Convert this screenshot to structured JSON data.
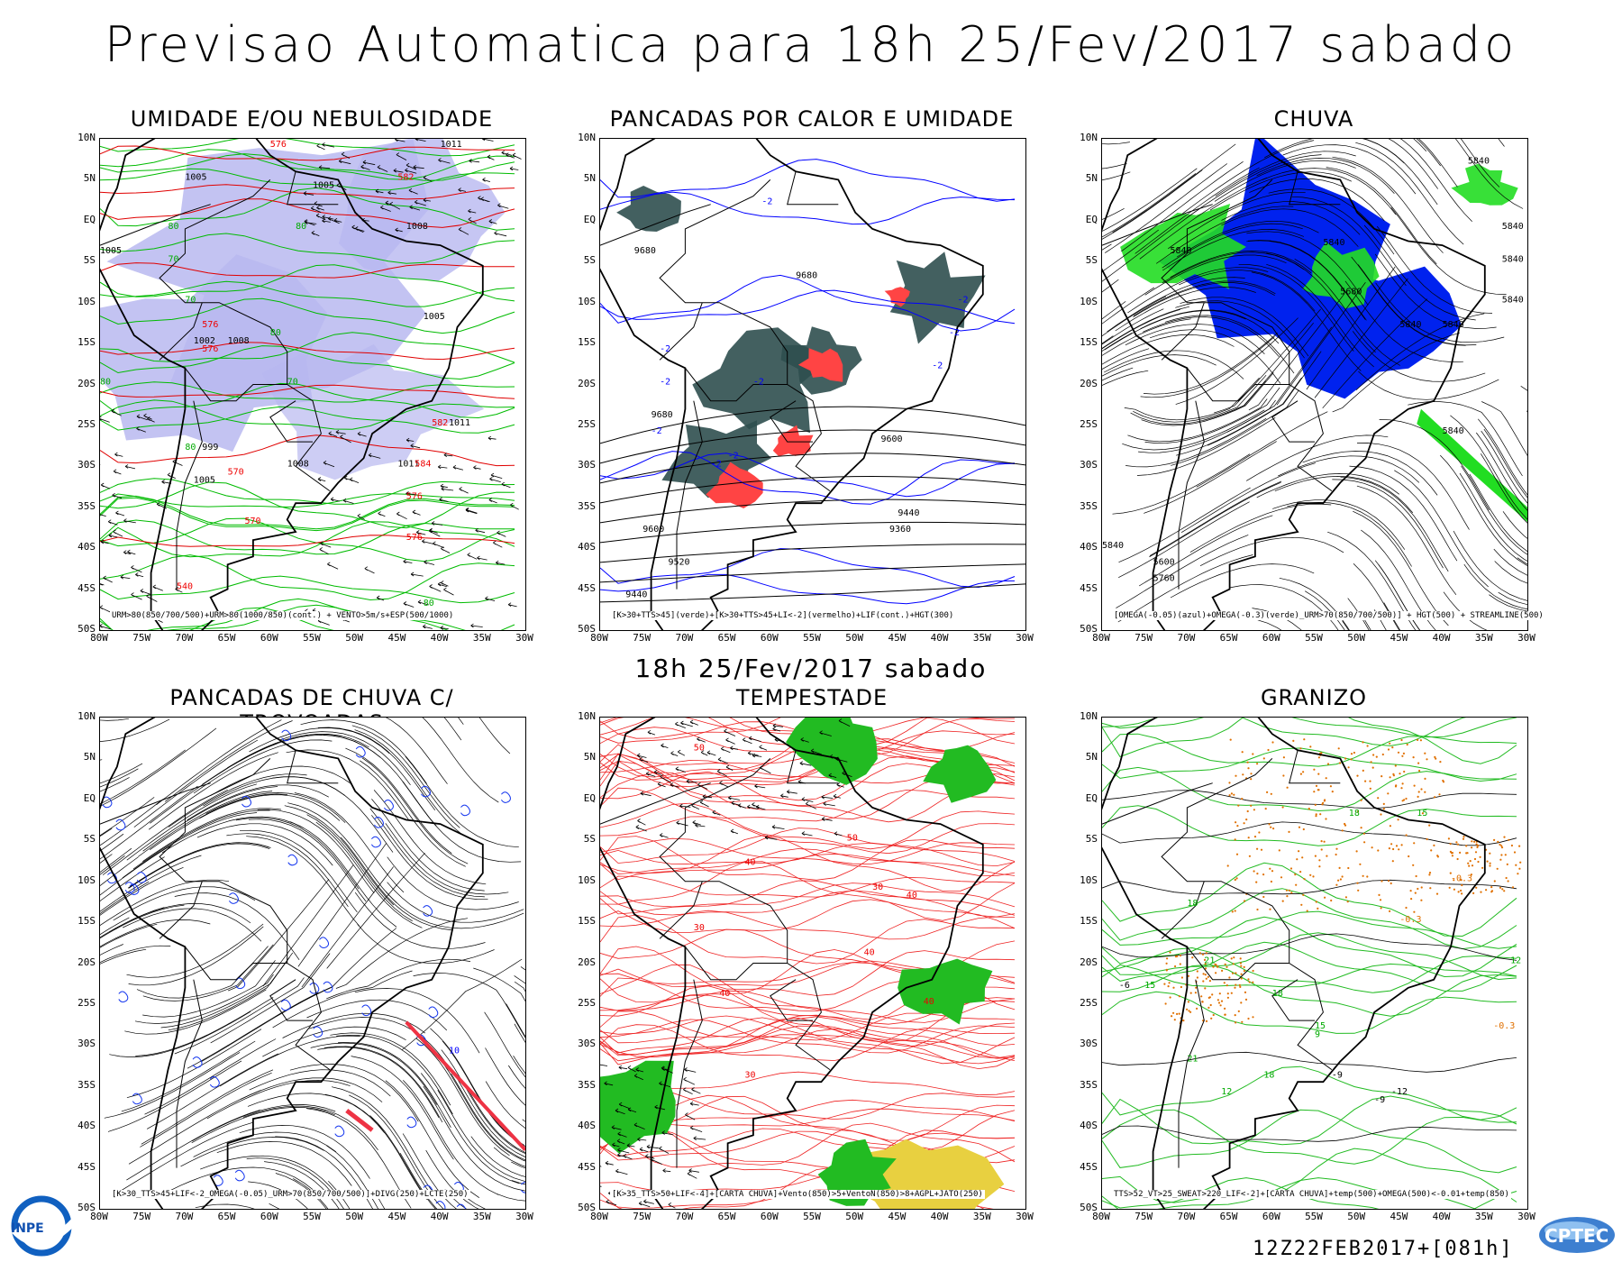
{
  "header": {
    "title": "Previsao Automatica  para 18h 25/Fev/2017 sabado",
    "mid_title": "18h 25/Fev/2017 sabado"
  },
  "axes": {
    "lat_labels": [
      "10N",
      "5N",
      "EQ",
      "5S",
      "10S",
      "15S",
      "20S",
      "25S",
      "30S",
      "35S",
      "40S",
      "45S",
      "50S"
    ],
    "lon_labels": [
      "80W",
      "75W",
      "70W",
      "65W",
      "60W",
      "55W",
      "50W",
      "45W",
      "40W",
      "35W",
      "30W"
    ]
  },
  "panels": [
    {
      "title": "UMIDADE E/OU NEBULOSIDADE",
      "caption": "URM>80(850/700/500)+URM>80(1000/850)(cont.) + VENTO>5m/s+ESP(500/1000)",
      "labels": [
        {
          "t": "1011",
          "c": "#000"
        },
        {
          "t": "1005",
          "c": "#000"
        },
        {
          "t": "1005",
          "c": "#000"
        },
        {
          "t": "1008",
          "c": "#000"
        },
        {
          "t": "1005",
          "c": "#000"
        },
        {
          "t": "1005",
          "c": "#000"
        },
        {
          "t": "1002",
          "c": "#000"
        },
        {
          "t": "1008",
          "c": "#000"
        },
        {
          "t": "999",
          "c": "#000"
        },
        {
          "t": "1005",
          "c": "#000"
        },
        {
          "t": "1008",
          "c": "#000"
        },
        {
          "t": "1011",
          "c": "#000"
        },
        {
          "t": "1011",
          "c": "#000"
        },
        {
          "t": "576",
          "c": "#e00"
        },
        {
          "t": "576",
          "c": "#e00"
        },
        {
          "t": "582",
          "c": "#e00"
        },
        {
          "t": "576",
          "c": "#e00"
        },
        {
          "t": "576",
          "c": "#e00"
        },
        {
          "t": "582",
          "c": "#e00"
        },
        {
          "t": "570",
          "c": "#e00"
        },
        {
          "t": "584",
          "c": "#e00"
        },
        {
          "t": "576",
          "c": "#e00"
        },
        {
          "t": "570",
          "c": "#e00"
        },
        {
          "t": "540",
          "c": "#e00"
        },
        {
          "t": "80",
          "c": "#0a0"
        },
        {
          "t": "80",
          "c": "#0a0"
        },
        {
          "t": "70",
          "c": "#0a0"
        },
        {
          "t": "80",
          "c": "#0a0"
        },
        {
          "t": "70",
          "c": "#0a0"
        },
        {
          "t": "80",
          "c": "#0a0"
        },
        {
          "t": "80",
          "c": "#0a0"
        },
        {
          "t": "70",
          "c": "#0a0"
        },
        {
          "t": "80",
          "c": "#0a0"
        }
      ]
    },
    {
      "title": "PANCADAS POR CALOR E UMIDADE",
      "caption": "[K>30+TTS>45](verde)+[K>30+TTS>45+LI<-2](vermelho)+LIF(cont.)+HGT(300)",
      "labels": [
        {
          "t": "9680",
          "c": "#000"
        },
        {
          "t": "9680",
          "c": "#000"
        },
        {
          "t": "9680",
          "c": "#000"
        },
        {
          "t": "9600",
          "c": "#000"
        },
        {
          "t": "9600",
          "c": "#000"
        },
        {
          "t": "9440",
          "c": "#000"
        },
        {
          "t": "9360",
          "c": "#000"
        },
        {
          "t": "9520",
          "c": "#000"
        },
        {
          "t": "9440",
          "c": "#000"
        },
        {
          "t": "-2",
          "c": "#00f"
        },
        {
          "t": "-2",
          "c": "#00f"
        },
        {
          "t": "-2",
          "c": "#00f"
        },
        {
          "t": "-2",
          "c": "#00f"
        },
        {
          "t": "-2",
          "c": "#00f"
        },
        {
          "t": "-2",
          "c": "#00f"
        },
        {
          "t": "-2",
          "c": "#00f"
        },
        {
          "t": "-2",
          "c": "#00f"
        },
        {
          "t": "-2",
          "c": "#00f"
        },
        {
          "t": "-2",
          "c": "#00f"
        }
      ]
    },
    {
      "title": "CHUVA",
      "caption": "[OMEGA(-0.05)(azul)+OMEGA(-0.3)(verde)_URM>70(850/700/500)] + HGT(500) + STREAMLINE(500)",
      "labels": [
        {
          "t": "5840",
          "c": "#000"
        },
        {
          "t": "5840",
          "c": "#000"
        },
        {
          "t": "5840",
          "c": "#000"
        },
        {
          "t": "5840",
          "c": "#000"
        },
        {
          "t": "5840",
          "c": "#000"
        },
        {
          "t": "5840",
          "c": "#000"
        },
        {
          "t": "5840",
          "c": "#000"
        },
        {
          "t": "5840",
          "c": "#000"
        },
        {
          "t": "5840",
          "c": "#000"
        },
        {
          "t": "5840",
          "c": "#000"
        },
        {
          "t": "5680",
          "c": "#000"
        },
        {
          "t": "5760",
          "c": "#000"
        },
        {
          "t": "5600",
          "c": "#000"
        }
      ]
    },
    {
      "title": "PANCADAS DE CHUVA C/ TROVOADAS",
      "caption": "[K>30_TTS>45+LIF<-2_OMEGA(-0.05)_URM>70(850/700/500)]+DIVG(250)+LCTE(250)",
      "labels": [
        {
          "t": "10",
          "c": "#00f"
        }
      ]
    },
    {
      "title": "TEMPESTADE",
      "caption": "[K>35_TTS>50+LIF<-4]+[CARTA CHUVA]+Vento(850)>5+VentoN(850)>8+AGPL+JATO(250)",
      "labels": [
        {
          "t": "50",
          "c": "#e00"
        },
        {
          "t": "40",
          "c": "#e00"
        },
        {
          "t": "50",
          "c": "#e00"
        },
        {
          "t": "30",
          "c": "#e00"
        },
        {
          "t": "40",
          "c": "#e00"
        },
        {
          "t": "30",
          "c": "#e00"
        },
        {
          "t": "40",
          "c": "#e00"
        },
        {
          "t": "40",
          "c": "#e00"
        },
        {
          "t": "30",
          "c": "#e00"
        },
        {
          "t": "40",
          "c": "#e00"
        }
      ]
    },
    {
      "title": "GRANIZO",
      "caption": "TTS>52_VT>25_SWEAT>220_LIF<-2]+[CARTA CHUVA]+temp(500)+OMEGA(500)<-0.01+temp(850)",
      "labels": [
        {
          "t": "15",
          "c": "#0a0"
        },
        {
          "t": "18",
          "c": "#0a0"
        },
        {
          "t": "18",
          "c": "#0a0"
        },
        {
          "t": "21",
          "c": "#0a0"
        },
        {
          "t": "15",
          "c": "#0a0"
        },
        {
          "t": "18",
          "c": "#0a0"
        },
        {
          "t": "21",
          "c": "#0a0"
        },
        {
          "t": "12",
          "c": "#0a0"
        },
        {
          "t": "15",
          "c": "#0a0"
        },
        {
          "t": "18",
          "c": "#0a0"
        },
        {
          "t": "12",
          "c": "#0a0"
        },
        {
          "t": "9",
          "c": "#0a0"
        },
        {
          "t": "-6",
          "c": "#000"
        },
        {
          "t": "-9",
          "c": "#000"
        },
        {
          "t": "-12",
          "c": "#000"
        },
        {
          "t": "-9",
          "c": "#000"
        },
        {
          "t": "-0.3",
          "c": "#e07000"
        },
        {
          "t": "-0.3",
          "c": "#e07000"
        },
        {
          "t": "-0.3",
          "c": "#e07000"
        }
      ]
    }
  ],
  "footer": {
    "run_label": "12Z22FEB2017+[081h]",
    "logo_left": "INPE",
    "logo_right": "CPTEC"
  },
  "colors": {
    "humidity_fill": "#b8b8f0",
    "humidity_contour": "#00bb00",
    "thickness_contour": "#e00000",
    "convective_fill": "#2f4f4f",
    "severe_fill": "#ff4444",
    "lif_contour": "#0000ff",
    "omega_weak": "#0022ee",
    "omega_strong": "#22dd22",
    "jet_fill": "#e8d040",
    "wind_green": "#22bb22",
    "hail_dots": "#e07000"
  }
}
